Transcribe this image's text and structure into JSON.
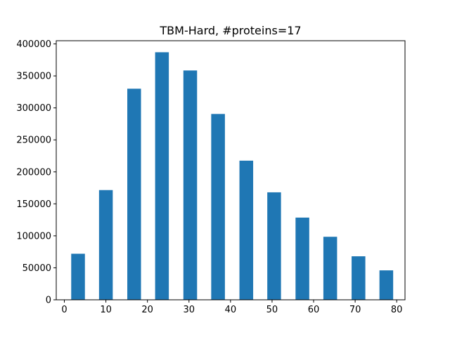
{
  "chart_data": {
    "type": "bar",
    "title": "TBM-Hard, #proteins=17",
    "xlabel": "",
    "ylabel": "",
    "bar_color": "#1f77b4",
    "xlim": [
      -1.95,
      82.0
    ],
    "ylim": [
      0,
      405000
    ],
    "x_ticks": [
      0,
      10,
      20,
      30,
      40,
      50,
      60,
      70,
      80
    ],
    "y_ticks": [
      0,
      50000,
      100000,
      150000,
      200000,
      250000,
      300000,
      350000,
      400000
    ],
    "bar_width": 3.3,
    "bins": [
      {
        "x": 3.3,
        "value": 72000
      },
      {
        "x": 10.0,
        "value": 171500
      },
      {
        "x": 16.8,
        "value": 330000
      },
      {
        "x": 23.5,
        "value": 387000
      },
      {
        "x": 30.3,
        "value": 358500
      },
      {
        "x": 37.0,
        "value": 290500
      },
      {
        "x": 43.8,
        "value": 217500
      },
      {
        "x": 50.5,
        "value": 168000
      },
      {
        "x": 57.3,
        "value": 128500
      },
      {
        "x": 64.0,
        "value": 98500
      },
      {
        "x": 70.8,
        "value": 68000
      },
      {
        "x": 77.5,
        "value": 46000
      }
    ],
    "grid": false,
    "legend": "none"
  }
}
